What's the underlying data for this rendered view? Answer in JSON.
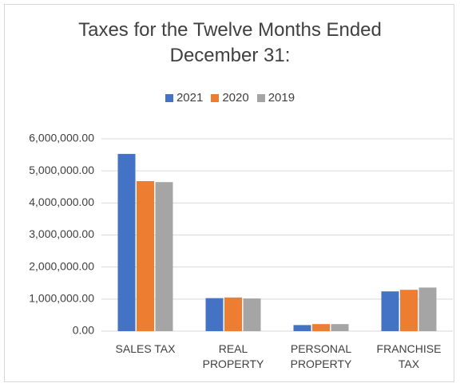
{
  "chart_data": {
    "type": "bar",
    "title": "Taxes for the Twelve Months Ended December 31:",
    "categories": [
      "SALES TAX",
      "REAL PROPERTY",
      "PERSONAL PROPERTY",
      "FRANCHISE TAX"
    ],
    "series": [
      {
        "name": "2021",
        "color": "#4472c4",
        "values": [
          5530000,
          1030000,
          190000,
          1240000
        ]
      },
      {
        "name": "2020",
        "color": "#ed7d31",
        "values": [
          4680000,
          1050000,
          220000,
          1290000
        ]
      },
      {
        "name": "2019",
        "color": "#a5a5a5",
        "values": [
          4650000,
          1020000,
          220000,
          1360000
        ]
      }
    ],
    "ylim": [
      0,
      6000000
    ],
    "yticks": [
      {
        "value": 0,
        "label": "0.00"
      },
      {
        "value": 1000000,
        "label": "1,000,000.00"
      },
      {
        "value": 2000000,
        "label": "2,000,000.00"
      },
      {
        "value": 3000000,
        "label": "3,000,000.00"
      },
      {
        "value": 4000000,
        "label": "4,000,000.00"
      },
      {
        "value": 5000000,
        "label": "5,000,000.00"
      },
      {
        "value": 6000000,
        "label": "6,000,000.00"
      }
    ],
    "grid": true,
    "legend": "top"
  }
}
